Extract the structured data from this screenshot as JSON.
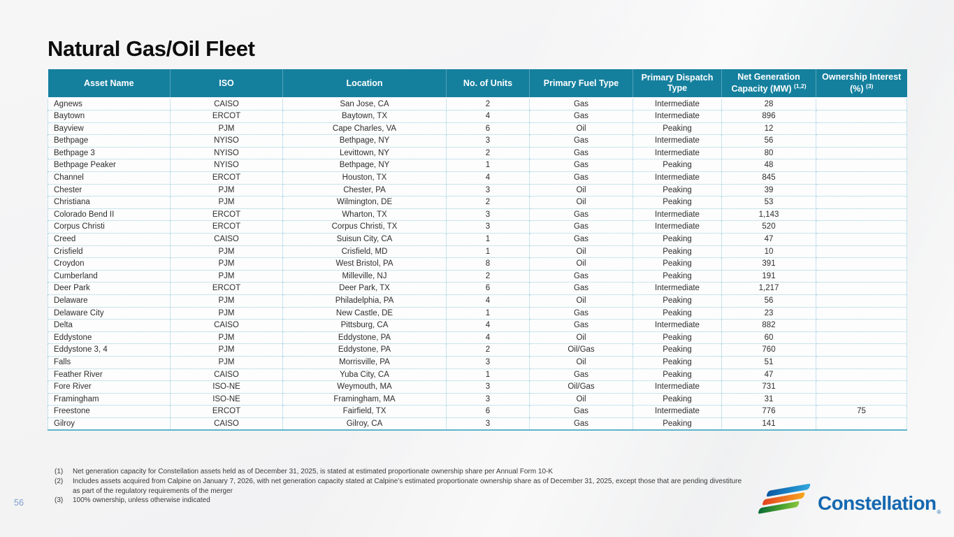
{
  "slide": {
    "title": "Natural Gas/Oil Fleet",
    "page_number": "56"
  },
  "colors": {
    "header_teal": "#15809E",
    "cell_border": "#9ED2E2",
    "table_bottom_edge": "#5FB4C9",
    "logo_blue": "#1568B0",
    "page_number_blue": "#7D9ECD",
    "stripe_blue": "#1B84C4",
    "stripe_orange": "#F07D22",
    "stripe_green": "#4CA32F"
  },
  "table": {
    "column_keys": [
      "asset-name",
      "iso",
      "location",
      "no-of-units",
      "primary-fuel-type",
      "primary-dispatch-type",
      "net-generation-capacity",
      "ownership-interest"
    ],
    "columns": [
      {
        "label": "Asset Name",
        "sup": ""
      },
      {
        "label": "ISO",
        "sup": ""
      },
      {
        "label": "Location",
        "sup": ""
      },
      {
        "label": "No. of Units",
        "sup": ""
      },
      {
        "label": "Primary Fuel Type",
        "sup": ""
      },
      {
        "label": "Primary Dispatch Type",
        "sup": ""
      },
      {
        "label": "Net Generation Capacity (MW) ",
        "sup": "(1,2)"
      },
      {
        "label": "Ownership Interest (%) ",
        "sup": "(3)"
      }
    ],
    "rows": [
      [
        "Agnews",
        "CAISO",
        "San Jose, CA",
        "2",
        "Gas",
        "Intermediate",
        "28",
        ""
      ],
      [
        "Baytown",
        "ERCOT",
        "Baytown, TX",
        "4",
        "Gas",
        "Intermediate",
        "896",
        ""
      ],
      [
        "Bayview",
        "PJM",
        "Cape Charles, VA",
        "6",
        "Oil",
        "Peaking",
        "12",
        ""
      ],
      [
        "Bethpage",
        "NYISO",
        "Bethpage, NY",
        "3",
        "Gas",
        "Intermediate",
        "56",
        ""
      ],
      [
        "Bethpage 3",
        "NYISO",
        "Levittown, NY",
        "2",
        "Gas",
        "Intermediate",
        "80",
        ""
      ],
      [
        "Bethpage Peaker",
        "NYISO",
        "Bethpage, NY",
        "1",
        "Gas",
        "Peaking",
        "48",
        ""
      ],
      [
        "Channel",
        "ERCOT",
        "Houston, TX",
        "4",
        "Gas",
        "Intermediate",
        "845",
        ""
      ],
      [
        "Chester",
        "PJM",
        "Chester, PA",
        "3",
        "Oil",
        "Peaking",
        "39",
        ""
      ],
      [
        "Christiana",
        "PJM",
        "Wilmington, DE",
        "2",
        "Oil",
        "Peaking",
        "53",
        ""
      ],
      [
        "Colorado Bend II",
        "ERCOT",
        "Wharton, TX",
        "3",
        "Gas",
        "Intermediate",
        "1,143",
        ""
      ],
      [
        "Corpus Christi",
        "ERCOT",
        "Corpus Christi, TX",
        "3",
        "Gas",
        "Intermediate",
        "520",
        ""
      ],
      [
        "Creed",
        "CAISO",
        "Suisun City, CA",
        "1",
        "Gas",
        "Peaking",
        "47",
        ""
      ],
      [
        "Crisfield",
        "PJM",
        "Crisfield, MD",
        "1",
        "Oil",
        "Peaking",
        "10",
        ""
      ],
      [
        "Croydon",
        "PJM",
        "West Bristol, PA",
        "8",
        "Oil",
        "Peaking",
        "391",
        ""
      ],
      [
        "Cumberland",
        "PJM",
        "Milleville, NJ",
        "2",
        "Gas",
        "Peaking",
        "191",
        ""
      ],
      [
        "Deer Park",
        "ERCOT",
        "Deer Park, TX",
        "6",
        "Gas",
        "Intermediate",
        "1,217",
        ""
      ],
      [
        "Delaware",
        "PJM",
        "Philadelphia, PA",
        "4",
        "Oil",
        "Peaking",
        "56",
        ""
      ],
      [
        "Delaware City",
        "PJM",
        "New Castle, DE",
        "1",
        "Gas",
        "Peaking",
        "23",
        ""
      ],
      [
        "Delta",
        "CAISO",
        "Pittsburg, CA",
        "4",
        "Gas",
        "Intermediate",
        "882",
        ""
      ],
      [
        "Eddystone",
        "PJM",
        "Eddystone, PA",
        "4",
        "Oil",
        "Peaking",
        "60",
        ""
      ],
      [
        "Eddystone 3, 4",
        "PJM",
        "Eddystone, PA",
        "2",
        "Oil/Gas",
        "Peaking",
        "760",
        ""
      ],
      [
        "Falls",
        "PJM",
        "Morrisville, PA",
        "3",
        "Oil",
        "Peaking",
        "51",
        ""
      ],
      [
        "Feather River",
        "CAISO",
        "Yuba City, CA",
        "1",
        "Gas",
        "Peaking",
        "47",
        ""
      ],
      [
        "Fore River",
        "ISO-NE",
        "Weymouth, MA",
        "3",
        "Oil/Gas",
        "Intermediate",
        "731",
        ""
      ],
      [
        "Framingham",
        "ISO-NE",
        "Framingham, MA",
        "3",
        "Oil",
        "Peaking",
        "31",
        ""
      ],
      [
        "Freestone",
        "ERCOT",
        "Fairfield, TX",
        "6",
        "Gas",
        "Intermediate",
        "776",
        "75"
      ],
      [
        "Gilroy",
        "CAISO",
        "Gilroy, CA",
        "3",
        "Gas",
        "Peaking",
        "141",
        ""
      ]
    ]
  },
  "footnotes": [
    {
      "marker": "(1)",
      "text": "Net generation capacity for Constellation assets held as of December 31, 2025, is stated at estimated proportionate ownership share per Annual Form 10-K"
    },
    {
      "marker": "(2)",
      "text": "Includes assets acquired from Calpine on January 7, 2026, with net generation capacity stated at Calpine’s estimated proportionate ownership share as of December 31, 2025, except those that are pending divestiture as part of the regulatory requirements of the merger"
    },
    {
      "marker": "(3)",
      "text": "100% ownership, unless otherwise indicated"
    }
  ],
  "logo": {
    "text": "Constellation",
    "registered": "®"
  }
}
